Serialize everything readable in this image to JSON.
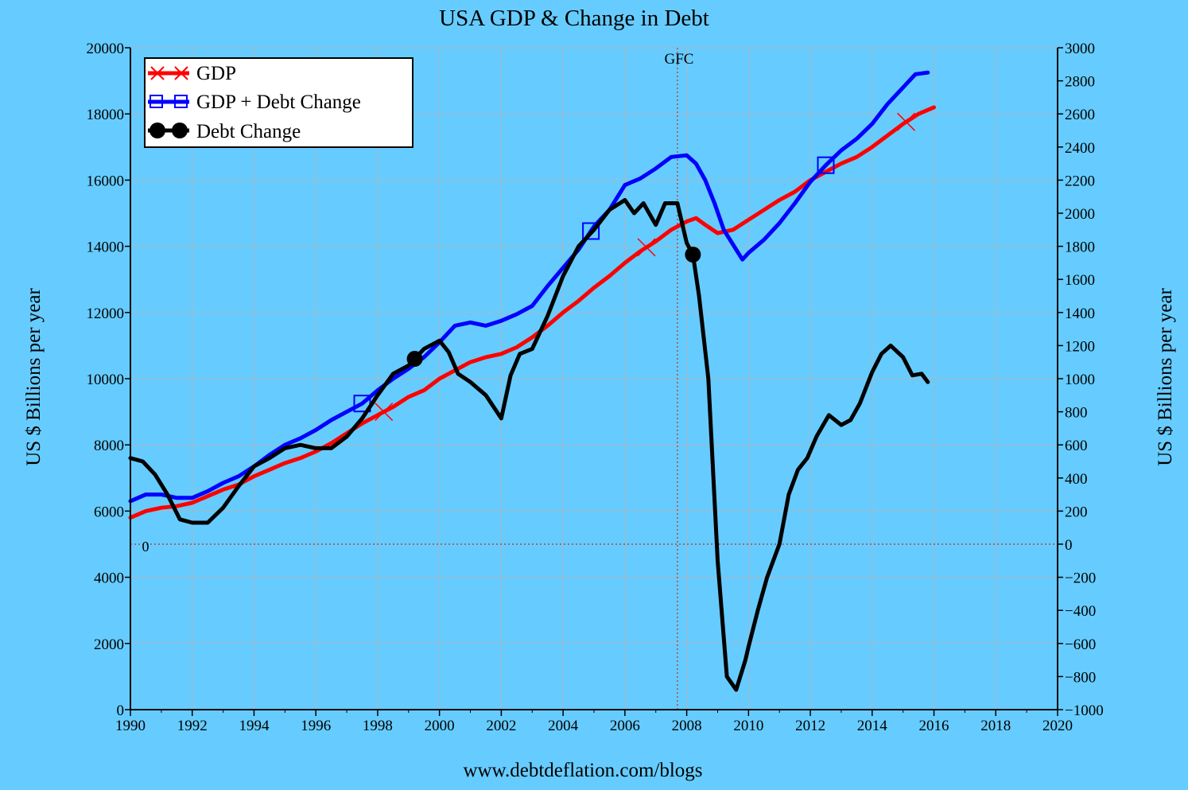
{
  "chart_data": {
    "type": "line",
    "title": "USA GDP & Change in Debt",
    "footer": "www.debtdeflation.com/blogs",
    "xlabel": "",
    "ylabel_left": "US $ Billions per year",
    "ylabel_right": "US $ Billions per year",
    "xlim": [
      1990,
      2020
    ],
    "ylim_left": [
      0,
      20000
    ],
    "ylim_right": [
      -1000,
      3000
    ],
    "x_ticks": [
      "1990",
      "1992",
      "1994",
      "1996",
      "1998",
      "2000",
      "2002",
      "2004",
      "2006",
      "2008",
      "2010",
      "2012",
      "2014",
      "2016",
      "2018",
      "2020"
    ],
    "y_left_ticks": [
      "0",
      "2000",
      "4000",
      "6000",
      "8000",
      "10000",
      "12000",
      "14000",
      "16000",
      "18000",
      "20000"
    ],
    "y_right_ticks": [
      "−1000",
      "−800",
      "−600",
      "−400",
      "−200",
      "0",
      "200",
      "400",
      "600",
      "800",
      "1000",
      "1200",
      "1400",
      "1600",
      "1800",
      "2000",
      "2200",
      "2400",
      "2600",
      "2800",
      "3000"
    ],
    "grid": true,
    "legend_position": "top-left",
    "annotations": [
      {
        "text": "GFC",
        "x": 2007.7,
        "type": "vertical-dotted-line"
      },
      {
        "text": "0",
        "y_right": 0,
        "type": "horizontal-dotted-line"
      }
    ],
    "series": [
      {
        "name": "GDP",
        "axis": "left",
        "color": "#ff0000",
        "marker": "x",
        "marker_x": [
          1998.2,
          2006.7,
          2015.1
        ],
        "x": [
          1990,
          1990.5,
          1991,
          1991.5,
          1992,
          1992.5,
          1993,
          1993.5,
          1994,
          1994.5,
          1995,
          1995.5,
          1996,
          1996.5,
          1997,
          1997.5,
          1998,
          1998.5,
          1999,
          1999.5,
          2000,
          2000.5,
          2001,
          2001.5,
          2002,
          2002.5,
          2003,
          2003.5,
          2004,
          2004.5,
          2005,
          2005.5,
          2006,
          2006.5,
          2007,
          2007.5,
          2008,
          2008.3,
          2008.6,
          2009,
          2009.5,
          2010,
          2010.5,
          2011,
          2011.5,
          2012,
          2012.5,
          2013,
          2013.5,
          2014,
          2014.5,
          2015,
          2015.5,
          2016
        ],
        "values": [
          5800,
          6000,
          6100,
          6150,
          6250,
          6450,
          6650,
          6800,
          7050,
          7250,
          7450,
          7600,
          7800,
          8050,
          8350,
          8650,
          8900,
          9150,
          9450,
          9650,
          10000,
          10250,
          10500,
          10650,
          10750,
          10950,
          11250,
          11600,
          12000,
          12350,
          12750,
          13100,
          13500,
          13850,
          14150,
          14500,
          14750,
          14850,
          14650,
          14400,
          14500,
          14800,
          15100,
          15400,
          15650,
          16000,
          16250,
          16500,
          16700,
          17000,
          17350,
          17700,
          18000,
          18200
        ]
      },
      {
        "name": "GDP + Debt Change",
        "axis": "left",
        "color": "#0000ff",
        "marker": "square",
        "marker_x": [
          1997.5,
          2004.9,
          2012.5
        ],
        "x": [
          1990,
          1990.5,
          1991,
          1991.5,
          1992,
          1992.5,
          1993,
          1993.5,
          1994,
          1994.5,
          1995,
          1995.5,
          1996,
          1996.5,
          1997,
          1997.5,
          1998,
          1998.5,
          1999,
          1999.5,
          2000,
          2000.5,
          2001,
          2001.5,
          2002,
          2002.5,
          2003,
          2003.5,
          2004,
          2004.5,
          2005,
          2005.5,
          2006,
          2006.5,
          2007,
          2007.5,
          2008,
          2008.3,
          2008.6,
          2008.9,
          2009.2,
          2009.5,
          2009.8,
          2010,
          2010.5,
          2011,
          2011.5,
          2012,
          2012.5,
          2013,
          2013.5,
          2014,
          2014.5,
          2015,
          2015.4,
          2015.8
        ],
        "values": [
          6300,
          6500,
          6500,
          6400,
          6400,
          6600,
          6850,
          7050,
          7350,
          7700,
          8000,
          8200,
          8450,
          8750,
          9000,
          9250,
          9650,
          10000,
          10300,
          10650,
          11100,
          11600,
          11700,
          11600,
          11750,
          11950,
          12200,
          12800,
          13350,
          13900,
          14600,
          15100,
          15850,
          16050,
          16350,
          16700,
          16750,
          16500,
          16000,
          15300,
          14500,
          14050,
          13600,
          13800,
          14200,
          14700,
          15300,
          15950,
          16450,
          16900,
          17250,
          17700,
          18300,
          18800,
          19200,
          19250
        ]
      },
      {
        "name": "Debt Change",
        "axis": "right",
        "color": "#000000",
        "marker": "circle",
        "marker_x": [
          1999.2,
          2008.2
        ],
        "x": [
          1990,
          1990.4,
          1990.8,
          1991.2,
          1991.6,
          1992,
          1992.5,
          1993,
          1993.5,
          1994,
          1994.5,
          1995,
          1995.5,
          1996,
          1996.5,
          1997,
          1997.5,
          1998,
          1998.5,
          1999,
          1999.5,
          2000,
          2000.3,
          2000.6,
          2001,
          2001.5,
          2002,
          2002.3,
          2002.6,
          2003,
          2003.5,
          2004,
          2004.5,
          2005,
          2005.5,
          2006,
          2006.3,
          2006.6,
          2007,
          2007.3,
          2007.7,
          2008,
          2008.2,
          2008.4,
          2008.7,
          2009,
          2009.3,
          2009.6,
          2009.9,
          2010,
          2010.3,
          2010.6,
          2011,
          2011.3,
          2011.6,
          2011.9,
          2012.2,
          2012.6,
          2013,
          2013.3,
          2013.6,
          2014,
          2014.3,
          2014.6,
          2015,
          2015.3,
          2015.6,
          2015.8
        ],
        "values": [
          520,
          500,
          420,
          300,
          150,
          130,
          130,
          220,
          350,
          470,
          520,
          580,
          600,
          580,
          580,
          650,
          760,
          900,
          1030,
          1080,
          1180,
          1230,
          1160,
          1030,
          980,
          900,
          760,
          1020,
          1150,
          1180,
          1380,
          1620,
          1800,
          1900,
          2020,
          2080,
          2000,
          2060,
          1930,
          2060,
          2060,
          1820,
          1750,
          1500,
          1000,
          -100,
          -800,
          -880,
          -700,
          -620,
          -400,
          -200,
          0,
          300,
          450,
          520,
          650,
          780,
          720,
          750,
          850,
          1040,
          1150,
          1200,
          1130,
          1020,
          1030,
          980
        ]
      }
    ]
  }
}
